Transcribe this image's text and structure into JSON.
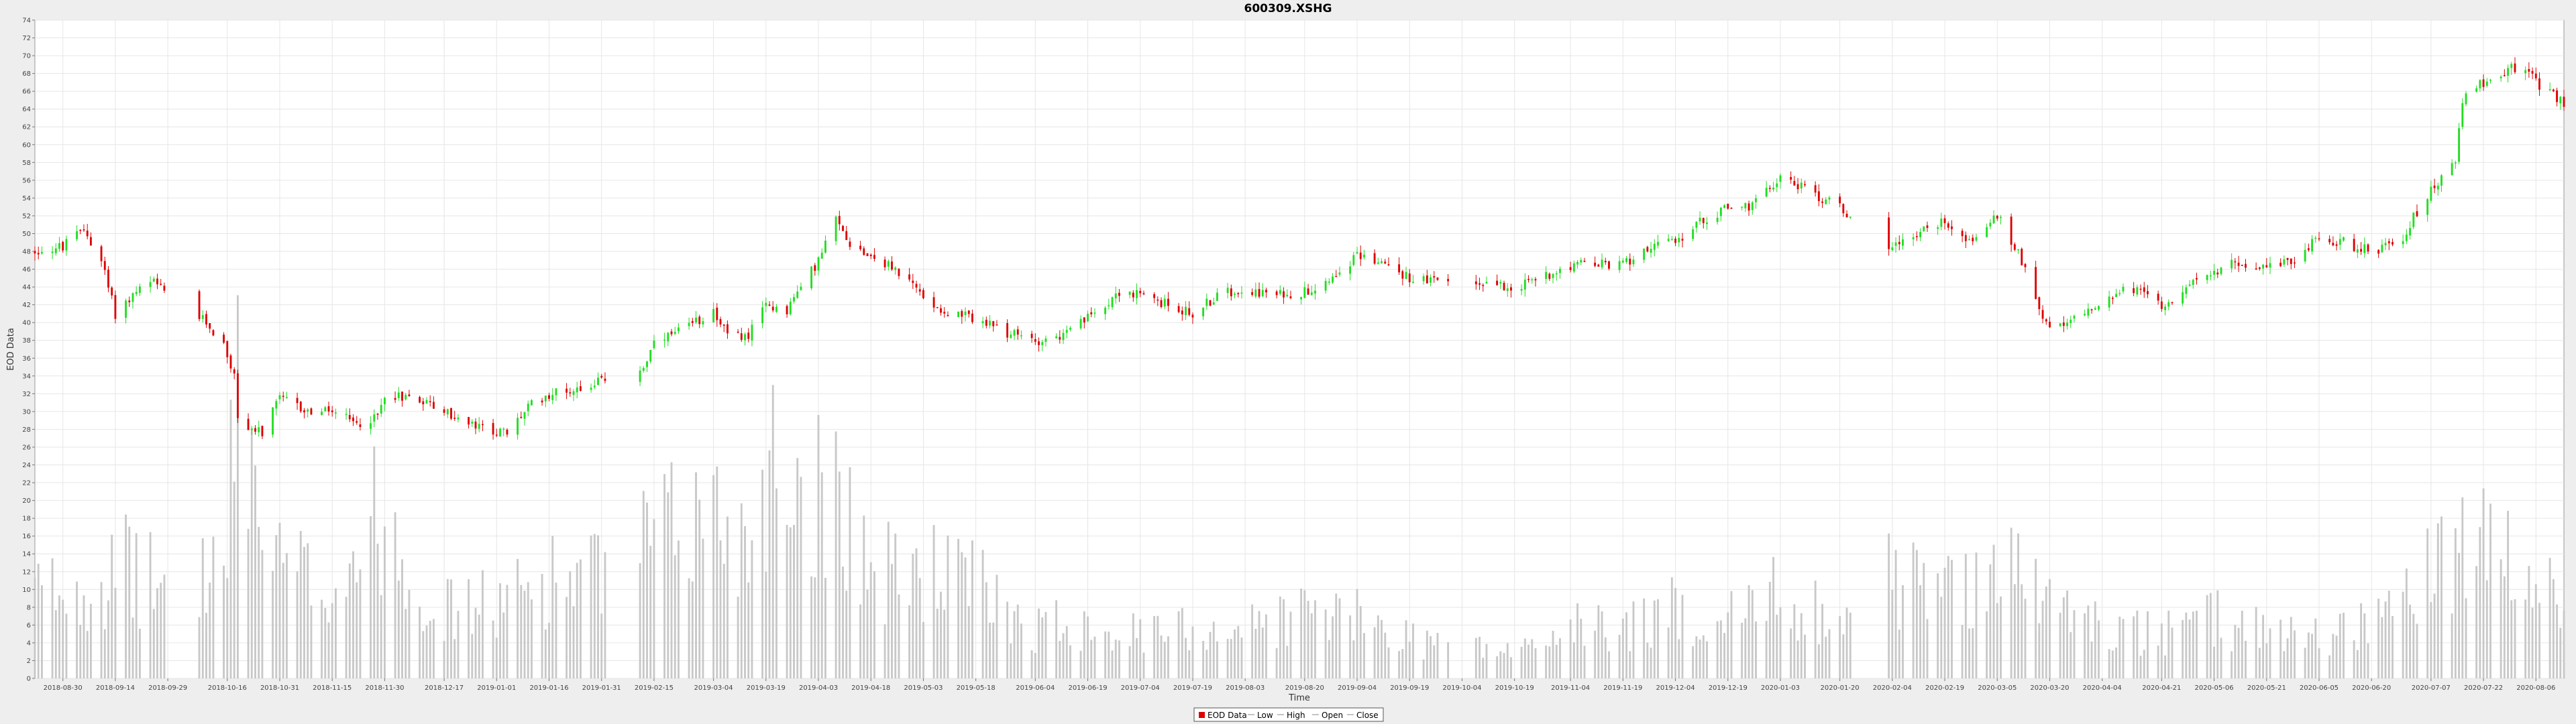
{
  "chart_data": {
    "type": "candlestick",
    "title": "600309.XSHG",
    "xlabel": "Time",
    "ylabel": "EOD Data",
    "ylim": [
      0,
      74
    ],
    "y_ticks": [
      0,
      2,
      4,
      6,
      8,
      10,
      12,
      14,
      16,
      18,
      20,
      22,
      24,
      26,
      28,
      30,
      32,
      34,
      36,
      38,
      40,
      42,
      44,
      46,
      48,
      50,
      52,
      54,
      56,
      58,
      60,
      62,
      64,
      66,
      68,
      70,
      72,
      74
    ],
    "x_range": [
      "2018-08-22",
      "2020-08-14"
    ],
    "x_ticks": [
      "2018-08-30",
      "2018-09-14",
      "2018-09-29",
      "2018-10-16",
      "2018-10-31",
      "2018-11-15",
      "2018-11-30",
      "2018-12-17",
      "2019-01-01",
      "2019-01-16",
      "2019-01-31",
      "2019-02-15",
      "2019-03-04",
      "2019-03-19",
      "2019-04-03",
      "2019-04-18",
      "2019-05-03",
      "2019-05-18",
      "2019-06-04",
      "2019-06-19",
      "2019-07-04",
      "2019-07-19",
      "2019-08-03",
      "2019-08-20",
      "2019-09-04",
      "2019-09-19",
      "2019-10-04",
      "2019-10-19",
      "2019-11-04",
      "2019-11-19",
      "2019-12-04",
      "2019-12-19",
      "2020-01-03",
      "2020-01-20",
      "2020-02-04",
      "2020-02-19",
      "2020-03-05",
      "2020-03-20",
      "2020-04-04",
      "2020-04-21",
      "2020-05-06",
      "2020-05-21",
      "2020-06-05",
      "2020-06-20",
      "2020-07-07",
      "2020-07-22",
      "2020-08-06"
    ],
    "grid": true,
    "legend_position": "bottom-center",
    "legend": [
      "EOD Data",
      "Low",
      "High",
      "Open",
      "Close"
    ],
    "colors": {
      "up": "#22dd22",
      "down": "#dd0000",
      "volume": "#c8c8c8",
      "plot_bg": "#ffffff",
      "grid": "#e6e6e6"
    },
    "price_anchors": [
      [
        "2018-08-22",
        48
      ],
      [
        "2018-08-30",
        48.5
      ],
      [
        "2018-09-05",
        50.5
      ],
      [
        "2018-09-10",
        47
      ],
      [
        "2018-09-14",
        41
      ],
      [
        "2018-09-20",
        43.5
      ],
      [
        "2018-09-25",
        44.5
      ],
      [
        "2018-09-29",
        43
      ],
      [
        "2018-10-10",
        40
      ],
      [
        "2018-10-15",
        37.5
      ],
      [
        "2018-10-18",
        34
      ],
      [
        "2018-10-19",
        29
      ],
      [
        "2018-10-26",
        27.5
      ],
      [
        "2018-10-31",
        31.5
      ],
      [
        "2018-11-08",
        30
      ],
      [
        "2018-11-15",
        30
      ],
      [
        "2018-11-22",
        28.5
      ],
      [
        "2018-11-28",
        29.5
      ],
      [
        "2018-11-30",
        32
      ],
      [
        "2018-12-10",
        31.5
      ],
      [
        "2018-12-17",
        30
      ],
      [
        "2018-12-24",
        28.5
      ],
      [
        "2019-01-04",
        27.5
      ],
      [
        "2019-01-10",
        30.5
      ],
      [
        "2019-01-16",
        32
      ],
      [
        "2019-01-23",
        32.5
      ],
      [
        "2019-01-31",
        33.5
      ],
      [
        "2019-02-12",
        35
      ],
      [
        "2019-02-15",
        37.5
      ],
      [
        "2019-02-25",
        39.5
      ],
      [
        "2019-03-04",
        41.5
      ],
      [
        "2019-03-08",
        38.5
      ],
      [
        "2019-03-14",
        38.5
      ],
      [
        "2019-03-19",
        42
      ],
      [
        "2019-03-25",
        41.5
      ],
      [
        "2019-03-29",
        44
      ],
      [
        "2019-04-03",
        47
      ],
      [
        "2019-04-08",
        51.5
      ],
      [
        "2019-04-12",
        49
      ],
      [
        "2019-04-18",
        47.5
      ],
      [
        "2019-04-25",
        46
      ],
      [
        "2019-05-03",
        43
      ],
      [
        "2019-05-10",
        41
      ],
      [
        "2019-05-18",
        40.5
      ],
      [
        "2019-05-25",
        39
      ],
      [
        "2019-06-04",
        38
      ],
      [
        "2019-06-12",
        38.5
      ],
      [
        "2019-06-19",
        40.5
      ],
      [
        "2019-06-28",
        43.5
      ],
      [
        "2019-07-04",
        43
      ],
      [
        "2019-07-12",
        42
      ],
      [
        "2019-07-19",
        41
      ],
      [
        "2019-07-26",
        43
      ],
      [
        "2019-08-03",
        44
      ],
      [
        "2019-08-10",
        43
      ],
      [
        "2019-08-20",
        43.5
      ],
      [
        "2019-08-27",
        45
      ],
      [
        "2019-09-04",
        47.5
      ],
      [
        "2019-09-10",
        47
      ],
      [
        "2019-09-19",
        45
      ],
      [
        "2019-09-28",
        44.5
      ],
      [
        "2019-10-04",
        44.5
      ],
      [
        "2019-10-12",
        44.5
      ],
      [
        "2019-10-19",
        44
      ],
      [
        "2019-10-26",
        45
      ],
      [
        "2019-11-04",
        46.5
      ],
      [
        "2019-11-12",
        46.5
      ],
      [
        "2019-11-19",
        46.5
      ],
      [
        "2019-11-26",
        48.5
      ],
      [
        "2019-12-04",
        49
      ],
      [
        "2019-12-10",
        51
      ],
      [
        "2019-12-19",
        53
      ],
      [
        "2019-12-26",
        53
      ],
      [
        "2020-01-03",
        56.5
      ],
      [
        "2020-01-10",
        55
      ],
      [
        "2020-01-20",
        53
      ],
      [
        "2020-01-23",
        52
      ],
      [
        "2020-02-03",
        48.5
      ],
      [
        "2020-02-08",
        49.5
      ],
      [
        "2020-02-19",
        51.5
      ],
      [
        "2020-02-26",
        49
      ],
      [
        "2020-03-05",
        52
      ],
      [
        "2020-03-12",
        47
      ],
      [
        "2020-03-16",
        43
      ],
      [
        "2020-03-20",
        39
      ],
      [
        "2020-03-24",
        39.5
      ],
      [
        "2020-04-04",
        42.5
      ],
      [
        "2020-04-12",
        44
      ],
      [
        "2020-04-21",
        42
      ],
      [
        "2020-04-28",
        44
      ],
      [
        "2020-05-06",
        45.5
      ],
      [
        "2020-05-12",
        47
      ],
      [
        "2020-05-21",
        46
      ],
      [
        "2020-05-28",
        47
      ],
      [
        "2020-06-05",
        49.5
      ],
      [
        "2020-06-12",
        49
      ],
      [
        "2020-06-20",
        48
      ],
      [
        "2020-06-28",
        49
      ],
      [
        "2020-07-03",
        52.5
      ],
      [
        "2020-07-07",
        55
      ],
      [
        "2020-07-14",
        58
      ],
      [
        "2020-07-16",
        65
      ],
      [
        "2020-07-22",
        67
      ],
      [
        "2020-07-28",
        68
      ],
      [
        "2020-08-01",
        69
      ],
      [
        "2020-08-06",
        67
      ],
      [
        "2020-08-10",
        66
      ],
      [
        "2020-08-14",
        64.5
      ]
    ],
    "volume_anchors": [
      [
        "2018-08-22",
        10
      ],
      [
        "2018-09-14",
        12
      ],
      [
        "2018-09-18",
        13
      ],
      [
        "2018-09-29",
        10
      ],
      [
        "2018-10-16",
        14
      ],
      [
        "2018-10-19",
        38
      ],
      [
        "2018-10-26",
        17
      ],
      [
        "2018-10-31",
        13
      ],
      [
        "2018-11-15",
        11
      ],
      [
        "2018-11-30",
        20
      ],
      [
        "2018-12-10",
        11
      ],
      [
        "2018-12-17",
        8
      ],
      [
        "2019-01-04",
        9
      ],
      [
        "2019-01-16",
        12
      ],
      [
        "2019-01-31",
        12
      ],
      [
        "2019-02-15",
        16
      ],
      [
        "2019-03-04",
        20
      ],
      [
        "2019-03-14",
        16
      ],
      [
        "2019-03-19",
        26
      ],
      [
        "2019-04-03",
        22
      ],
      [
        "2019-04-09",
        24
      ],
      [
        "2019-04-18",
        12
      ],
      [
        "2019-05-03",
        13
      ],
      [
        "2019-05-18",
        11
      ],
      [
        "2019-06-04",
        6
      ],
      [
        "2019-06-19",
        7
      ],
      [
        "2019-07-04",
        5
      ],
      [
        "2019-07-19",
        6
      ],
      [
        "2019-08-03",
        6
      ],
      [
        "2019-08-20",
        8
      ],
      [
        "2019-09-04",
        7
      ],
      [
        "2019-09-19",
        5
      ],
      [
        "2019-10-04",
        4
      ],
      [
        "2019-10-19",
        3
      ],
      [
        "2019-11-04",
        6
      ],
      [
        "2019-11-19",
        6
      ],
      [
        "2019-12-04",
        8
      ],
      [
        "2019-12-19",
        7
      ],
      [
        "2020-01-03",
        10
      ],
      [
        "2020-01-20",
        7
      ],
      [
        "2020-02-04",
        12
      ],
      [
        "2020-02-19",
        10
      ],
      [
        "2020-03-05",
        14
      ],
      [
        "2020-03-20",
        9
      ],
      [
        "2020-04-04",
        6
      ],
      [
        "2020-04-21",
        5
      ],
      [
        "2020-05-06",
        7
      ],
      [
        "2020-05-21",
        6
      ],
      [
        "2020-06-05",
        5
      ],
      [
        "2020-06-20",
        7
      ],
      [
        "2020-07-07",
        12
      ],
      [
        "2020-07-22",
        16
      ],
      [
        "2020-08-06",
        10
      ],
      [
        "2020-08-14",
        9
      ]
    ],
    "gaps": [
      [
        "2018-10-01",
        "2018-10-07"
      ],
      [
        "2019-02-04",
        "2019-02-10"
      ],
      [
        "2019-10-01",
        "2019-10-07"
      ],
      [
        "2020-01-24",
        "2020-02-02"
      ]
    ]
  }
}
